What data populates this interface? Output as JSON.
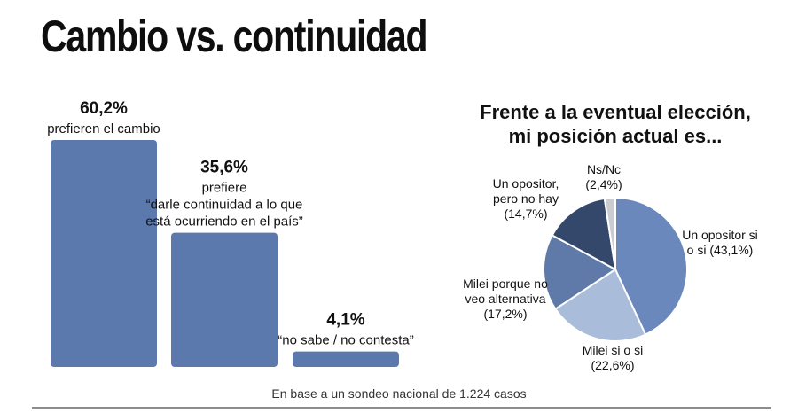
{
  "page": {
    "title": "Cambio vs. continuidad",
    "footer_note": "En base a un sondeo nacional de 1.224 casos"
  },
  "colors": {
    "bar": "#5b79ad",
    "pie": [
      "#6a88bb",
      "#a9bcd9",
      "#5f7aa9",
      "#34486c",
      "#c9cdd2"
    ]
  },
  "chart_data": [
    {
      "type": "bar",
      "title": "",
      "categories": [
        "prefieren el cambio",
        "prefiere “darle continuidad a lo que está ocurriendo en el país”",
        "“no sabe / no contesta”"
      ],
      "values": [
        60.2,
        35.6,
        4.1
      ],
      "value_labels": [
        "60,2%",
        "35,6%",
        "4,1%"
      ],
      "label_lines": [
        [
          "prefieren el cambio"
        ],
        [
          "prefiere",
          "“darle continuidad a lo que",
          "está ocurriendo en el país”"
        ],
        [
          "“no sabe / no contesta”"
        ]
      ],
      "ylim": [
        0,
        60.2
      ],
      "grid": false
    },
    {
      "type": "pie",
      "title_lines": [
        "Frente a la eventual elección,",
        "mi posición actual es..."
      ],
      "categories": [
        "Un opositor si o si",
        "Milei si o si",
        "Milei porque no veo alternativa",
        "Un opositor, pero no hay",
        "Ns/Nc"
      ],
      "values": [
        43.1,
        22.6,
        17.2,
        14.7,
        2.4
      ],
      "label_lines": [
        [
          "Un opositor si",
          "o si (43,1%)"
        ],
        [
          "Milei si o si",
          "(22,6%)"
        ],
        [
          "Milei porque no",
          "veo alternativa",
          "(17,2%)"
        ],
        [
          "Un opositor,",
          "pero no hay",
          "(14,7%)"
        ],
        [
          "Ns/Nc",
          "(2,4%)"
        ]
      ]
    }
  ]
}
